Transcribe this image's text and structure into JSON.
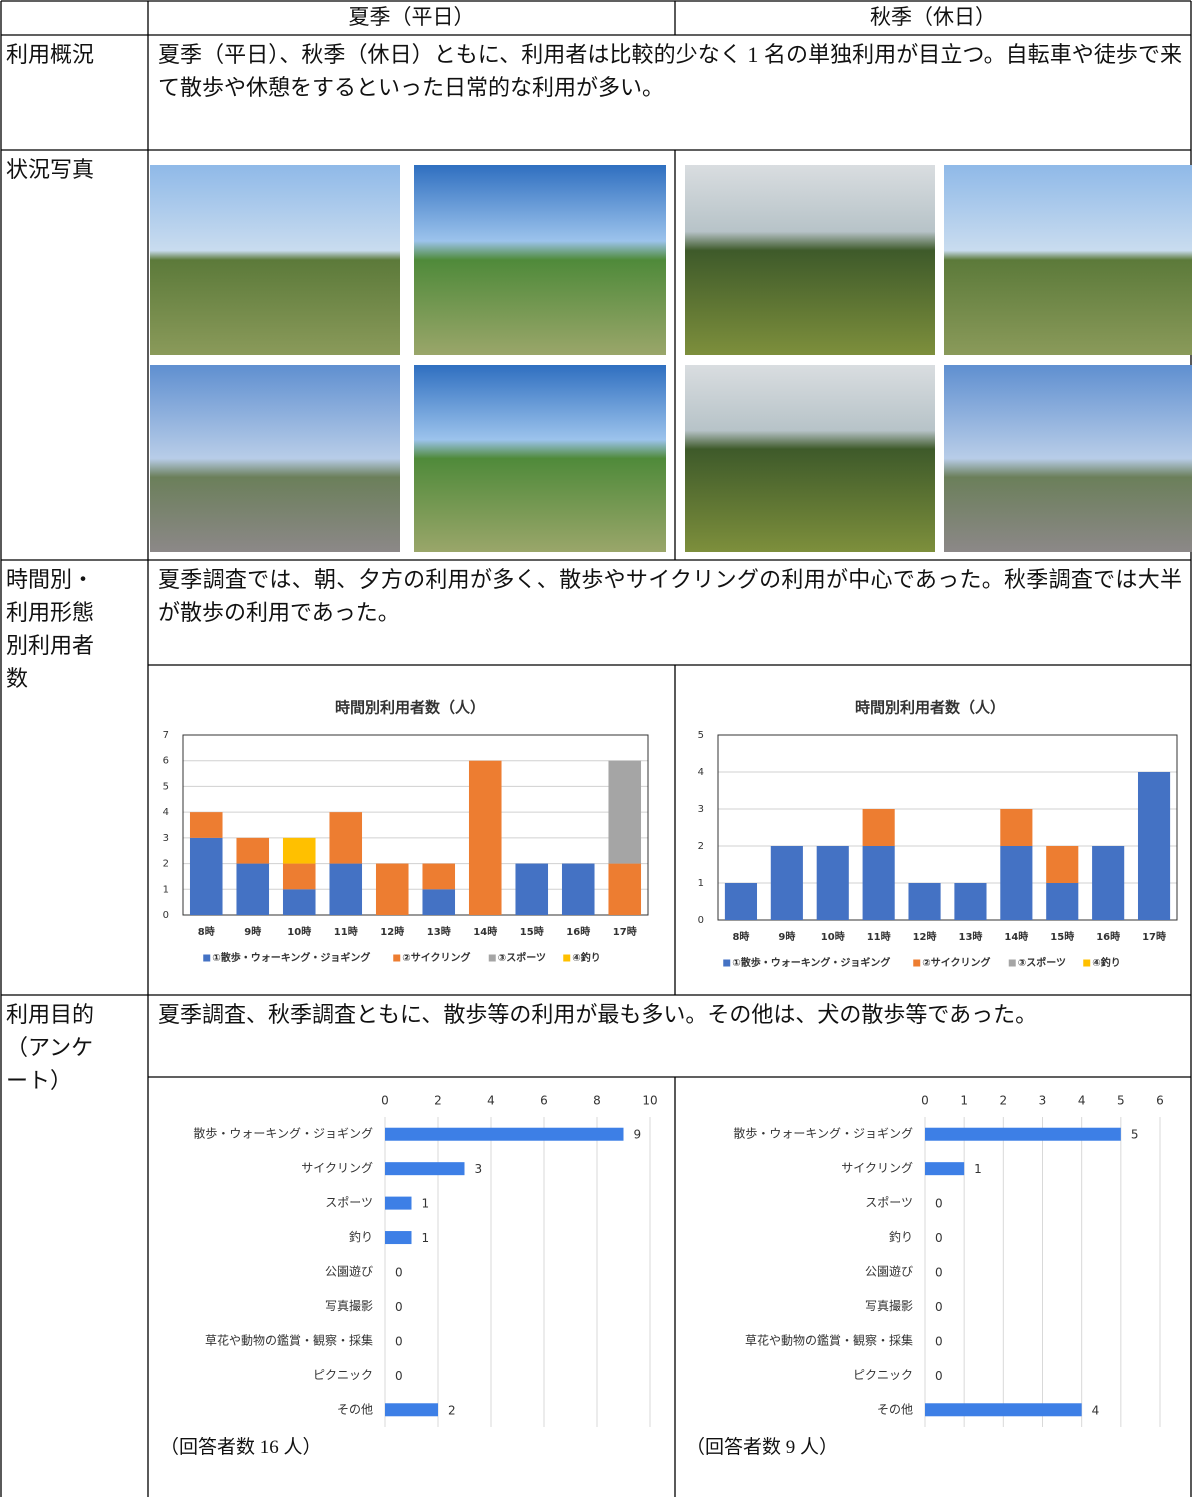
{
  "header": [
    "夏季（平日）",
    "秋季（休日）"
  ],
  "rows": [
    {
      "label": "利用概況",
      "text": "夏季（平日）、秋季（休日）ともに、利用者は比較的少なく 1 名の単独利用が目立つ。自転車や徒歩で来て散歩や休憩をするといった日常的な利用が多い。"
    },
    {
      "label": "状況写真"
    },
    {
      "label": "時間別・利用形態別利用者数",
      "text": "夏季調査では、朝、夕方の利用が多く、散歩やサイクリングの利用が中心であった。秋季調査では大半が散歩の利用であった。"
    },
    {
      "label": "利用目的（アンケート）",
      "text": "夏季調査、秋季調査ともに、散歩等の利用が最も多い。その他は、犬の散歩等であった。"
    }
  ],
  "time_charts": [
    {
      "type": "stacked-bar",
      "title": "時間別利用者数（人）",
      "categories": [
        "8時",
        "9時",
        "10時",
        "11時",
        "12時",
        "13時",
        "14時",
        "15時",
        "16時",
        "17時"
      ],
      "series": [
        {
          "name": "①散歩・ウォーキング・ジョギング",
          "color": "#4472c4",
          "values": [
            3,
            2,
            1,
            2,
            0,
            1,
            0,
            2,
            2,
            0
          ]
        },
        {
          "name": "②サイクリング",
          "color": "#ed7d31",
          "values": [
            1,
            1,
            1,
            2,
            2,
            1,
            6,
            0,
            0,
            2
          ]
        },
        {
          "name": "③スポーツ",
          "color": "#a5a5a5",
          "values": [
            0,
            0,
            0,
            0,
            0,
            0,
            0,
            0,
            0,
            4
          ]
        },
        {
          "name": "④釣り",
          "color": "#ffc000",
          "values": [
            0,
            0,
            1,
            0,
            0,
            0,
            0,
            0,
            0,
            0
          ]
        }
      ],
      "ylim": [
        0,
        7
      ],
      "yticks": [
        0,
        1,
        2,
        3,
        4,
        5,
        6,
        7
      ],
      "grid": true,
      "legend": "bottom"
    },
    {
      "type": "stacked-bar",
      "title": "時間別利用者数（人）",
      "categories": [
        "8時",
        "9時",
        "10時",
        "11時",
        "12時",
        "13時",
        "14時",
        "15時",
        "16時",
        "17時"
      ],
      "series": [
        {
          "name": "①散歩・ウォーキング・ジョギング",
          "color": "#4472c4",
          "values": [
            1,
            2,
            2,
            2,
            1,
            1,
            2,
            1,
            2,
            4
          ]
        },
        {
          "name": "②サイクリング",
          "color": "#ed7d31",
          "values": [
            0,
            0,
            0,
            1,
            0,
            0,
            1,
            1,
            0,
            0
          ]
        },
        {
          "name": "③スポーツ",
          "color": "#a5a5a5",
          "values": [
            0,
            0,
            0,
            0,
            0,
            0,
            0,
            0,
            0,
            0
          ]
        },
        {
          "name": "④釣り",
          "color": "#ffc000",
          "values": [
            0,
            0,
            0,
            0,
            0,
            0,
            0,
            0,
            0,
            0
          ]
        }
      ],
      "ylim": [
        0,
        5
      ],
      "yticks": [
        0,
        1,
        2,
        3,
        4,
        5
      ],
      "grid": true,
      "legend": "bottom"
    }
  ],
  "purpose_charts": [
    {
      "type": "barh",
      "categories": [
        "散歩・ウォーキング・ジョギング",
        "サイクリング",
        "スポーツ",
        "釣り",
        "公園遊び",
        "写真撮影",
        "草花や動物の鑑賞・観察・採集",
        "ピクニック",
        "その他"
      ],
      "values": [
        9,
        3,
        1,
        1,
        0,
        0,
        0,
        0,
        2
      ],
      "color": "#3d7fe6",
      "xlim": [
        0,
        10
      ],
      "xticks": [
        0,
        2,
        4,
        6,
        8,
        10
      ],
      "grid": true,
      "note": "（回答者数 16 人）"
    },
    {
      "type": "barh",
      "categories": [
        "散歩・ウォーキング・ジョギング",
        "サイクリング",
        "スポーツ",
        "釣り",
        "公園遊び",
        "写真撮影",
        "草花や動物の鑑賞・観察・採集",
        "ピクニック",
        "その他"
      ],
      "values": [
        5,
        1,
        0,
        0,
        0,
        0,
        0,
        0,
        4
      ],
      "color": "#3d7fe6",
      "xlim": [
        0,
        6
      ],
      "xticks": [
        0,
        1,
        2,
        3,
        4,
        5,
        6
      ],
      "grid": true,
      "note": "（回答者数 9 人）"
    }
  ]
}
